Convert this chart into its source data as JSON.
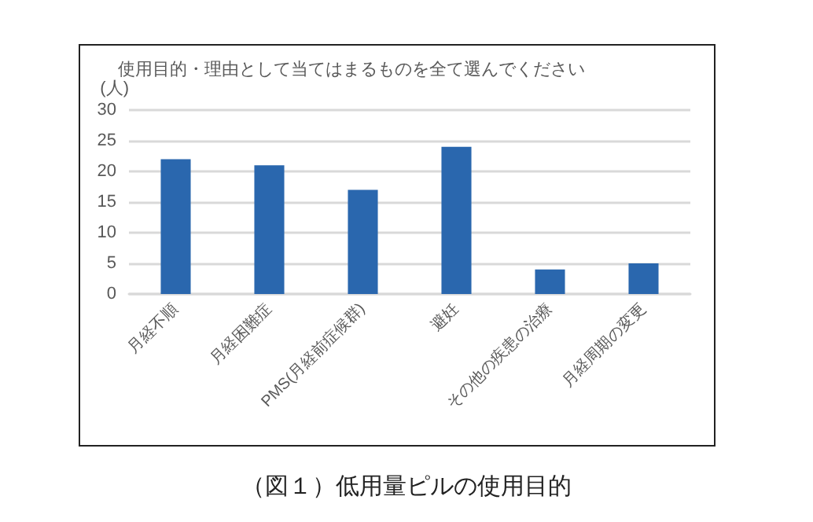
{
  "chart_data": {
    "type": "bar",
    "title": "使用目的・理由として当てはまるものを全て選んでください",
    "ylabel": "(人)",
    "categories": [
      "月経不順",
      "月経困難症",
      "PMS(月経前症候群)",
      "避妊",
      "その他の疾患の治療",
      "月経周期の変更"
    ],
    "values": [
      22,
      21,
      17,
      24,
      4,
      5
    ],
    "color": "#2a67ae",
    "ylim": [
      0,
      30
    ],
    "yticks": [
      0,
      5,
      10,
      15,
      20,
      25,
      30
    ],
    "grid": "y",
    "annotations": [
      "（図１）低用量ピルの使用目的"
    ]
  }
}
